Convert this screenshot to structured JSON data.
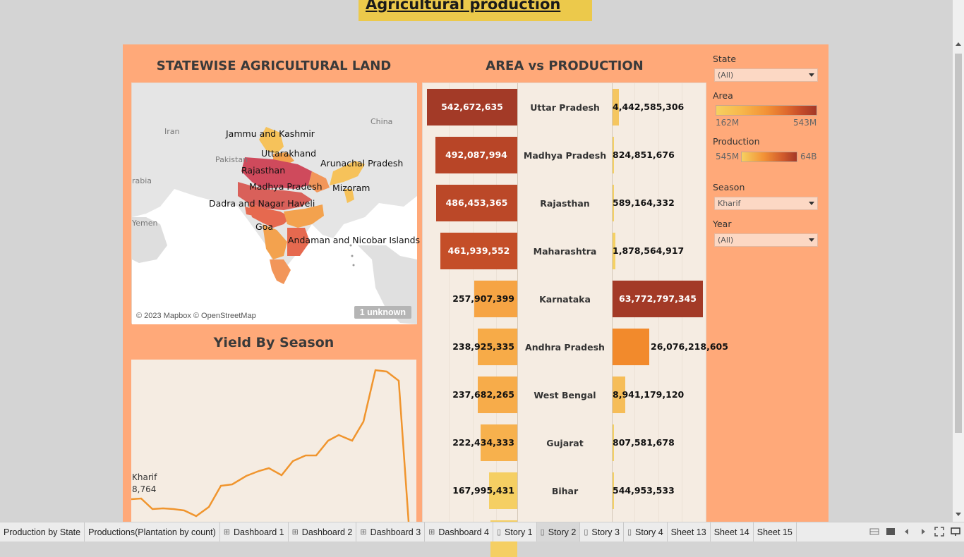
{
  "header": {
    "title": "Agricultural production"
  },
  "map": {
    "title": "STATEWISE AGRICULTURAL LAND",
    "labels": [
      "Jammu and Kashmir",
      "Uttarakhand",
      "Arunachal Pradesh",
      "Rajasthan",
      "Madhya Pradesh",
      "Mizoram",
      "Dadra and Nagar Haveli",
      "Goa",
      "Andaman and Nicobar Islands"
    ],
    "countries": [
      "Iran",
      "China",
      "Pakistan",
      "rabia",
      "Yemen"
    ],
    "credit": "© 2023 Mapbox © OpenStreetMap",
    "unknown_badge": "1 unknown"
  },
  "yield": {
    "title": "Yield By Season",
    "series_label": "Kharif",
    "first_value": "8,764"
  },
  "area_vs_production": {
    "title": "AREA vs PRODUCTION",
    "rows": [
      {
        "state": "Uttar Pradesh",
        "area": "542,672,635",
        "area_value": 542672635,
        "production": "4,442,585,306",
        "production_value": 4442585306,
        "area_color": "#a33a27",
        "prod_color": "#f5c660"
      },
      {
        "state": "Madhya Pradesh",
        "area": "492,087,994",
        "area_value": 492087994,
        "production": "824,851,676",
        "production_value": 824851676,
        "area_color": "#b84527",
        "prod_color": "#f5d164"
      },
      {
        "state": "Rajasthan",
        "area": "486,453,365",
        "area_value": 486453365,
        "production": "589,164,332",
        "production_value": 589164332,
        "area_color": "#bb4828",
        "prod_color": "#f5d164"
      },
      {
        "state": "Maharashtra",
        "area": "461,939,552",
        "area_value": 461939552,
        "production": "1,878,564,917",
        "production_value": 1878564917,
        "area_color": "#c44e28",
        "prod_color": "#f5d164"
      },
      {
        "state": "Karnataka",
        "area": "257,907,399",
        "area_value": 257907399,
        "production": "63,772,797,345",
        "production_value": 63772797345,
        "area_color": "#f6a444",
        "prod_color": "#a33a27"
      },
      {
        "state": "Andhra Pradesh",
        "area": "238,925,335",
        "area_value": 238925335,
        "production": "26,076,218,605",
        "production_value": 26076218605,
        "area_color": "#f7ab48",
        "prod_color": "#f28a2c"
      },
      {
        "state": "West Bengal",
        "area": "237,682,265",
        "area_value": 237682265,
        "production": "8,941,179,120",
        "production_value": 8941179120,
        "area_color": "#f7ac4a",
        "prod_color": "#f6bd58"
      },
      {
        "state": "Gujarat",
        "area": "222,434,333",
        "area_value": 222434333,
        "production": "807,581,678",
        "production_value": 807581678,
        "area_color": "#f7b14d",
        "prod_color": "#f5d164"
      },
      {
        "state": "Bihar",
        "area": "167,995,431",
        "area_value": 167995431,
        "production": "544,953,533",
        "production_value": 544953533,
        "area_color": "#f5cf63",
        "prod_color": "#f5d164"
      }
    ]
  },
  "filters": {
    "state_label": "State",
    "state_value": "(All)",
    "area_label": "Area",
    "area_min": "162M",
    "area_max": "543M",
    "production_label": "Production",
    "production_min": "545M",
    "production_max": "64B",
    "season_label": "Season",
    "season_value": "Kharif",
    "year_label": "Year",
    "year_value": "(All)"
  },
  "tabs": [
    {
      "label": "Production by State",
      "icon": ""
    },
    {
      "label": "Productions(Plantation by count)",
      "icon": ""
    },
    {
      "label": "Dashboard 1",
      "icon": "grid"
    },
    {
      "label": "Dashboard 2",
      "icon": "grid"
    },
    {
      "label": "Dashboard 3",
      "icon": "grid"
    },
    {
      "label": "Dashboard 4",
      "icon": "grid"
    },
    {
      "label": "Story 1",
      "icon": "book"
    },
    {
      "label": "Story 2",
      "icon": "book",
      "active": true
    },
    {
      "label": "Story 3",
      "icon": "book"
    },
    {
      "label": "Story 4",
      "icon": "book"
    },
    {
      "label": "Sheet 13",
      "icon": ""
    },
    {
      "label": "Sheet 14",
      "icon": ""
    },
    {
      "label": "Sheet 15",
      "icon": ""
    }
  ]
}
